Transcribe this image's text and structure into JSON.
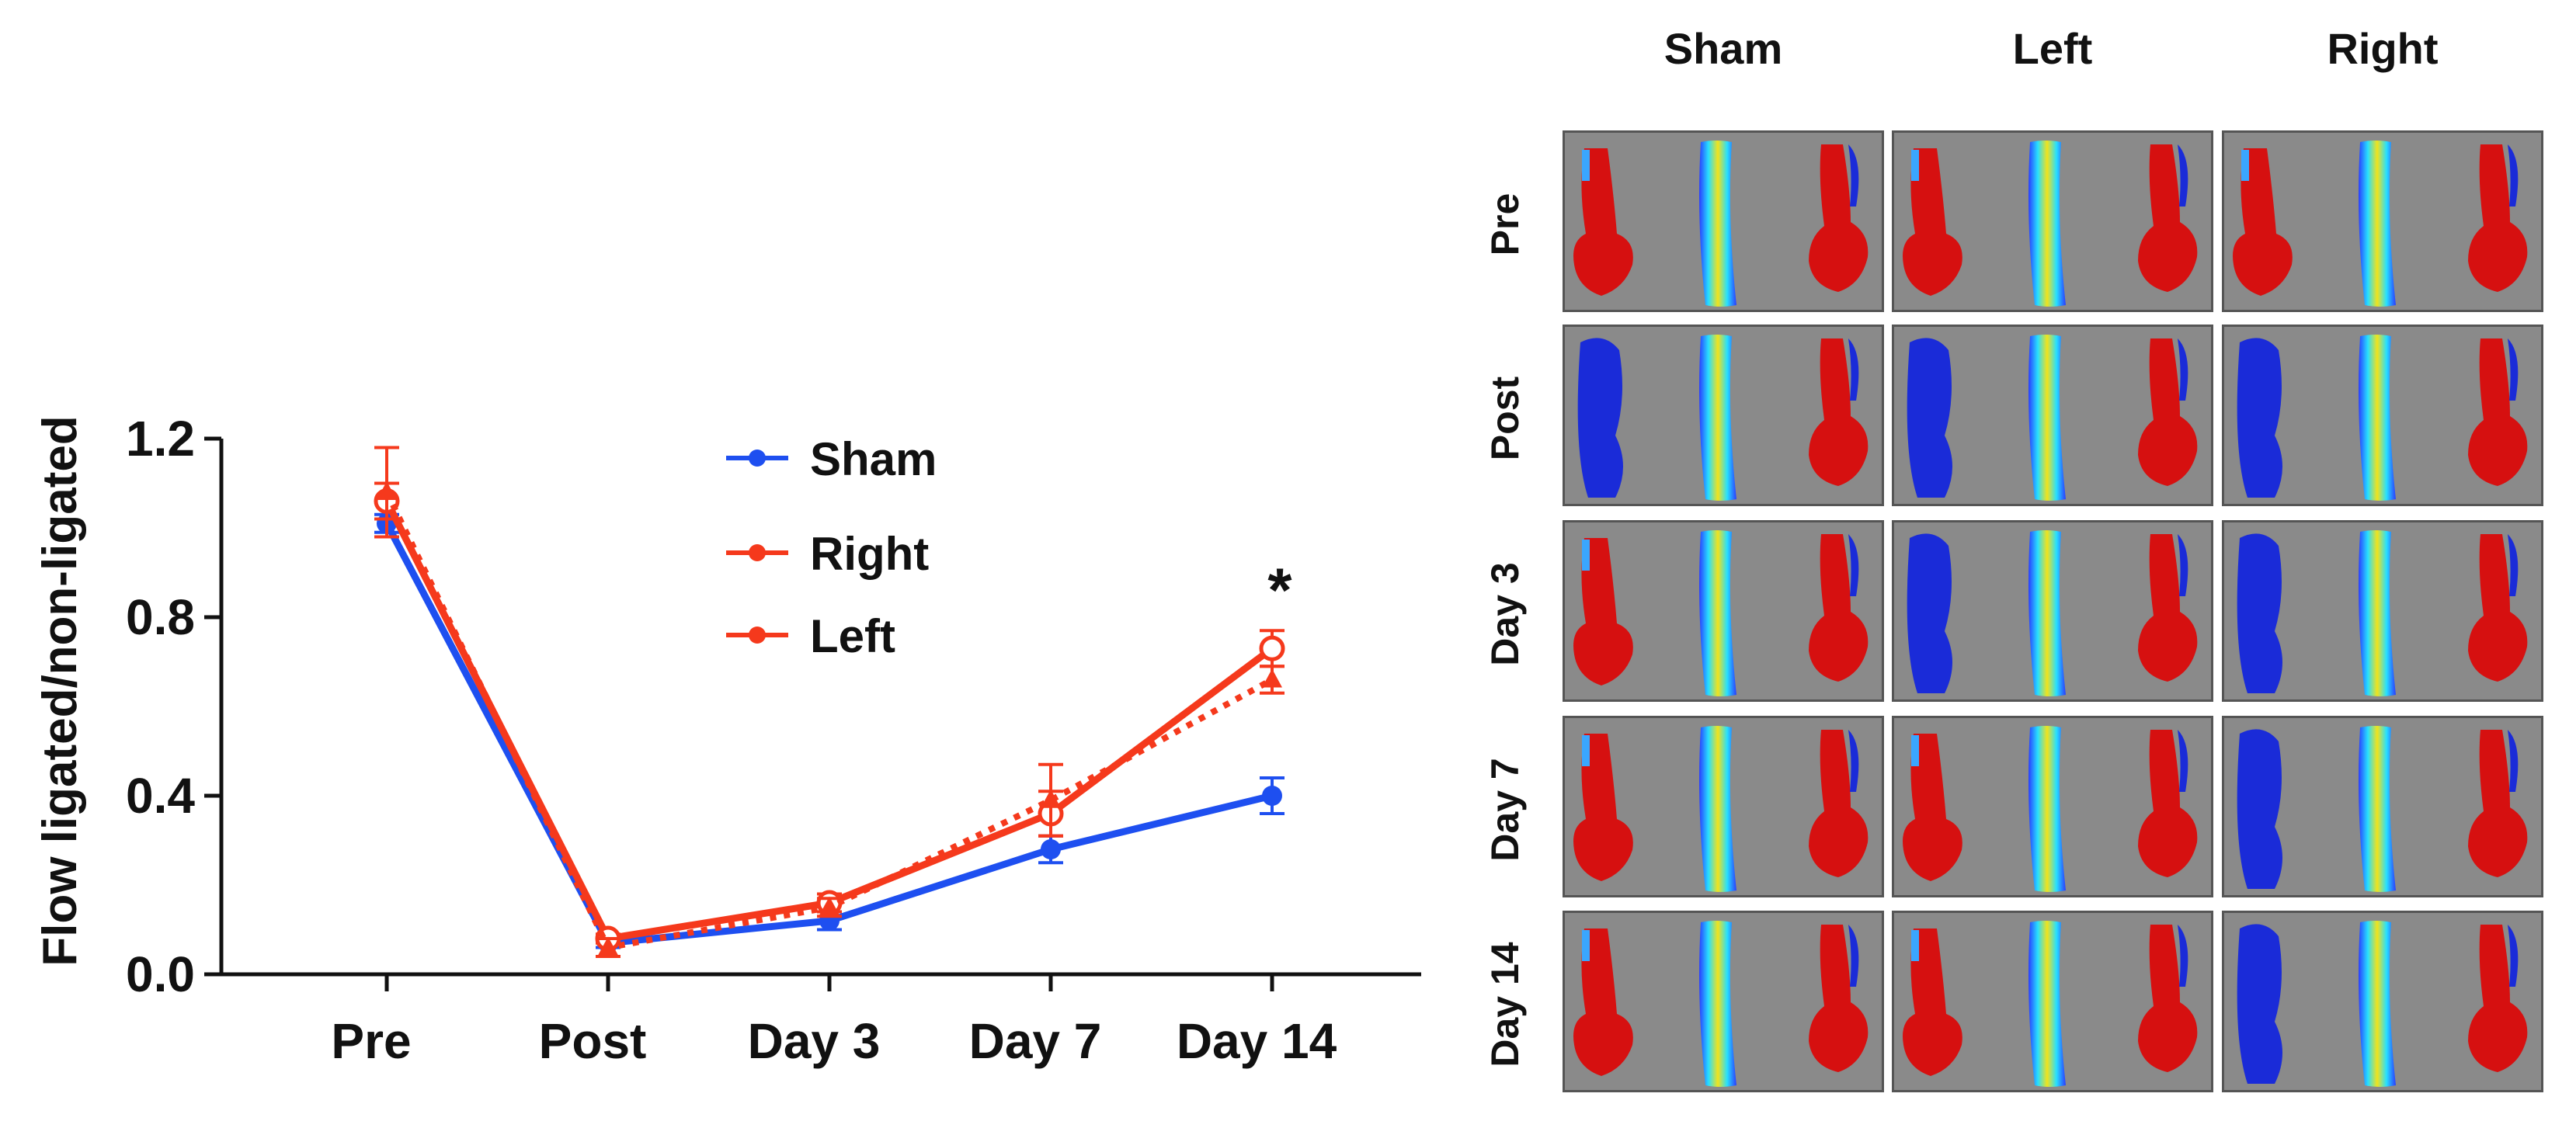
{
  "chart_data": {
    "type": "line",
    "categories": [
      "Pre",
      "Post",
      "Day 3",
      "Day 7",
      "Day 14"
    ],
    "ylabel": "Flow ligated/non-ligated",
    "xlabel": "",
    "ylim": [
      0.0,
      1.2
    ],
    "yticks": [
      "0.0",
      "0.4",
      "0.8",
      "1.2"
    ],
    "ytick_values": [
      0.0,
      0.4,
      0.8,
      1.2
    ],
    "legend_position": "top-center",
    "series": [
      {
        "name": "Sham",
        "color": "#1e4ff0",
        "style": "solid",
        "marker": "filled-circle",
        "values": [
          1.01,
          0.07,
          0.12,
          0.28,
          0.4
        ],
        "errors": [
          0.02,
          0.01,
          0.02,
          0.03,
          0.04
        ]
      },
      {
        "name": "Right",
        "color": "#f5391c",
        "style": "solid",
        "marker": "open-circle",
        "values": [
          1.06,
          0.08,
          0.16,
          0.36,
          0.73
        ],
        "errors": [
          0.04,
          0.01,
          0.02,
          0.05,
          0.04
        ]
      },
      {
        "name": "Left",
        "color": "#f5391c",
        "style": "dotted",
        "marker": "filled-triangle",
        "values": [
          1.08,
          0.06,
          0.15,
          0.39,
          0.66
        ],
        "errors": [
          0.1,
          0.02,
          0.02,
          0.08,
          0.03
        ]
      }
    ],
    "annotations": [
      {
        "text": "*",
        "category": "Day 14"
      }
    ]
  },
  "heatmap_grid": {
    "columns": [
      "Sham",
      "Left",
      "Right"
    ],
    "rows": [
      "Pre",
      "Post",
      "Day 3",
      "Day 7",
      "Day 14"
    ]
  }
}
